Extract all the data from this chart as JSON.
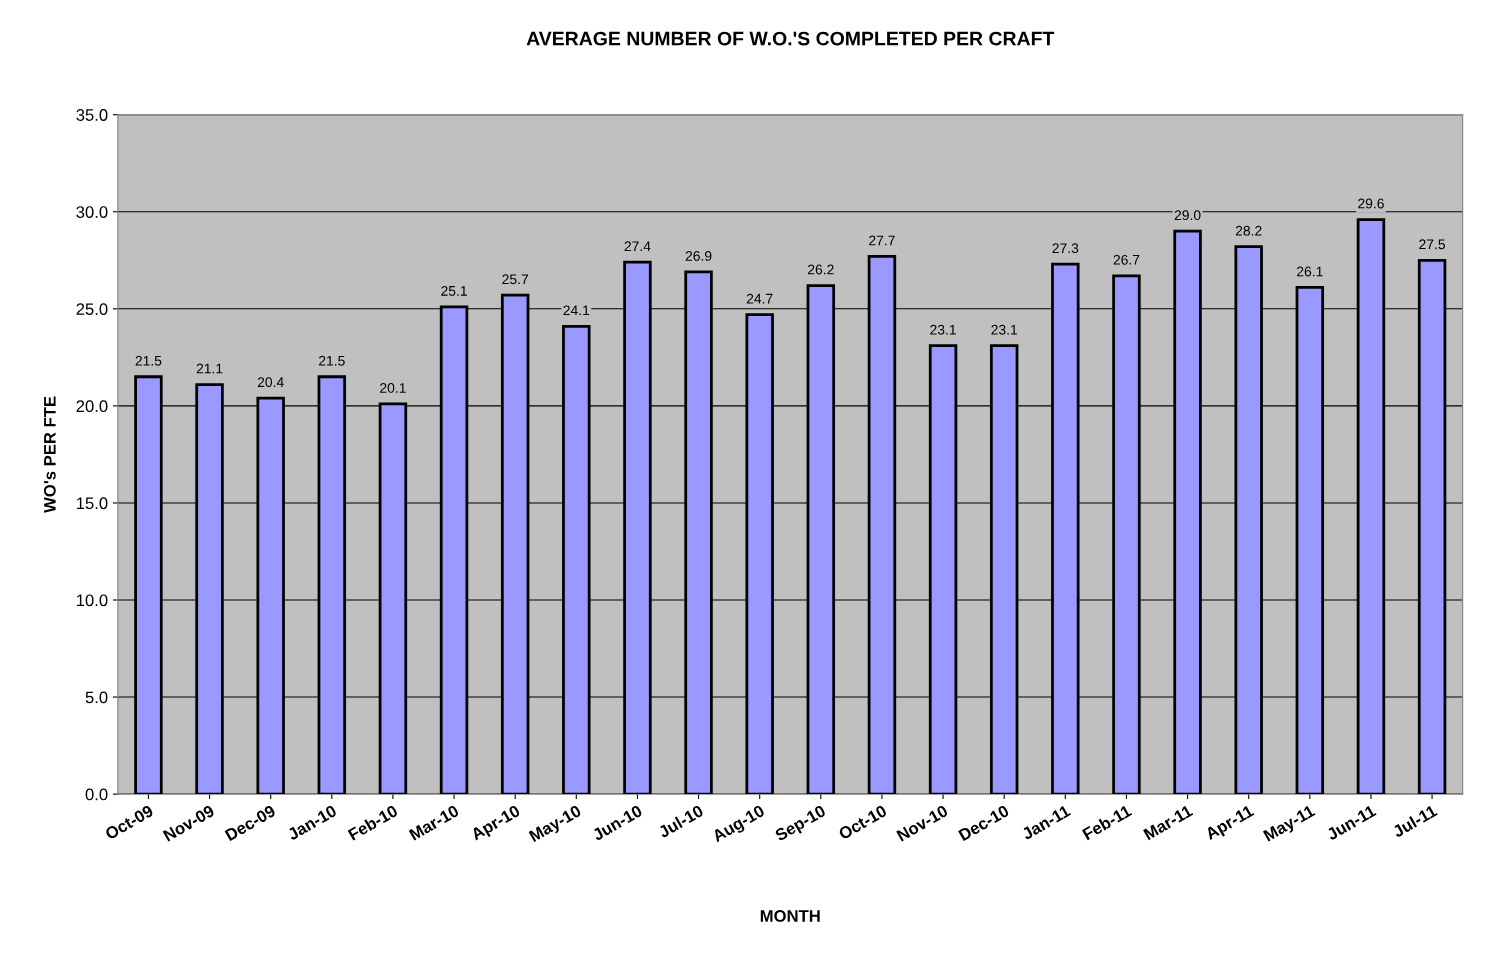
{
  "chart_data": {
    "type": "bar",
    "title": "AVERAGE NUMBER OF W.O.'S COMPLETED PER CRAFT",
    "xlabel": "MONTH",
    "ylabel": "WO's PER FTE",
    "categories": [
      "Oct-09",
      "Nov-09",
      "Dec-09",
      "Jan-10",
      "Feb-10",
      "Mar-10",
      "Apr-10",
      "May-10",
      "Jun-10",
      "Jul-10",
      "Aug-10",
      "Sep-10",
      "Oct-10",
      "Nov-10",
      "Dec-10",
      "Jan-11",
      "Feb-11",
      "Mar-11",
      "Apr-11",
      "May-11",
      "Jun-11",
      "Jul-11"
    ],
    "values": [
      21.5,
      21.1,
      20.4,
      21.5,
      20.1,
      25.1,
      25.7,
      24.1,
      27.4,
      26.9,
      24.7,
      26.2,
      27.7,
      23.1,
      23.1,
      27.3,
      26.7,
      29.0,
      28.2,
      26.1,
      29.6,
      27.5
    ],
    "value_labels": [
      "21.5",
      "21.1",
      "20.4",
      "21.5",
      "20.1",
      "25.1",
      "25.7",
      "24.1",
      "27.4",
      "26.9",
      "24.7",
      "26.2",
      "27.7",
      "23.1",
      "23.1",
      "27.3",
      "26.7",
      "29.0",
      "28.2",
      "26.1",
      "29.6",
      "27.5"
    ],
    "color": "#9999ff",
    "grid": "y",
    "legend": false,
    "ylim": [
      0,
      35
    ],
    "yticks": [
      {
        "value": 0,
        "label": "0.0"
      },
      {
        "value": 5,
        "label": "5.0"
      },
      {
        "value": 10,
        "label": "10.0"
      },
      {
        "value": 15,
        "label": "15.0"
      },
      {
        "value": 20,
        "label": "20.0"
      },
      {
        "value": 25,
        "label": "25.0"
      },
      {
        "value": 30,
        "label": "30.0"
      },
      {
        "value": 35,
        "label": "35.0"
      }
    ]
  }
}
